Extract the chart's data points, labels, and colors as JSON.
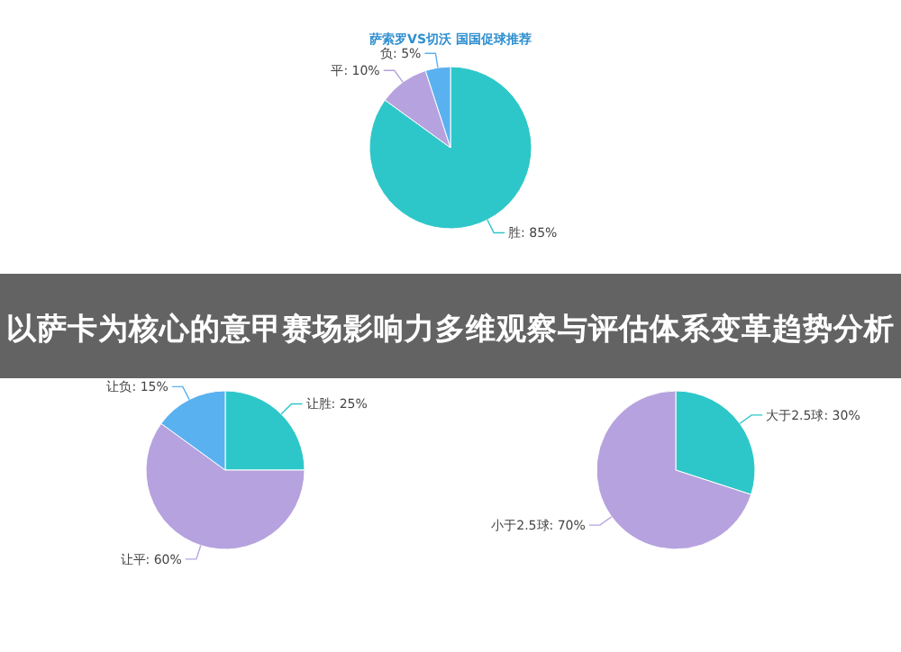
{
  "chart_data": [
    {
      "type": "pie",
      "title": "萨索罗VS切沃 国国促球推荐",
      "categories": [
        "胜",
        "平",
        "负"
      ],
      "values": [
        85,
        10,
        5
      ],
      "colors": [
        "#2ec7c9",
        "#b6a2de",
        "#5ab1ef"
      ],
      "value_labels": [
        ": 85%",
        ": 10%",
        ": 5%"
      ]
    },
    {
      "type": "other",
      "title": "以萨卡为核心的意甲赛场影响力多维观察与评估体系变革趋势分析"
    },
    {
      "type": "pie",
      "categories": [
        "让胜",
        "让平",
        "让负"
      ],
      "values": [
        25,
        60,
        15
      ],
      "colors": [
        "#2ec7c9",
        "#b6a2de",
        "#5ab1ef"
      ],
      "value_labels": [
        ": 25%",
        ": 60%",
        ": 15%"
      ]
    },
    {
      "type": "pie",
      "categories": [
        "大于2.5球",
        "小于2.5球"
      ],
      "values": [
        30,
        70
      ],
      "colors": [
        "#2ec7c9",
        "#b6a2de"
      ],
      "value_labels": [
        ": 30%",
        ": 70%"
      ]
    }
  ]
}
